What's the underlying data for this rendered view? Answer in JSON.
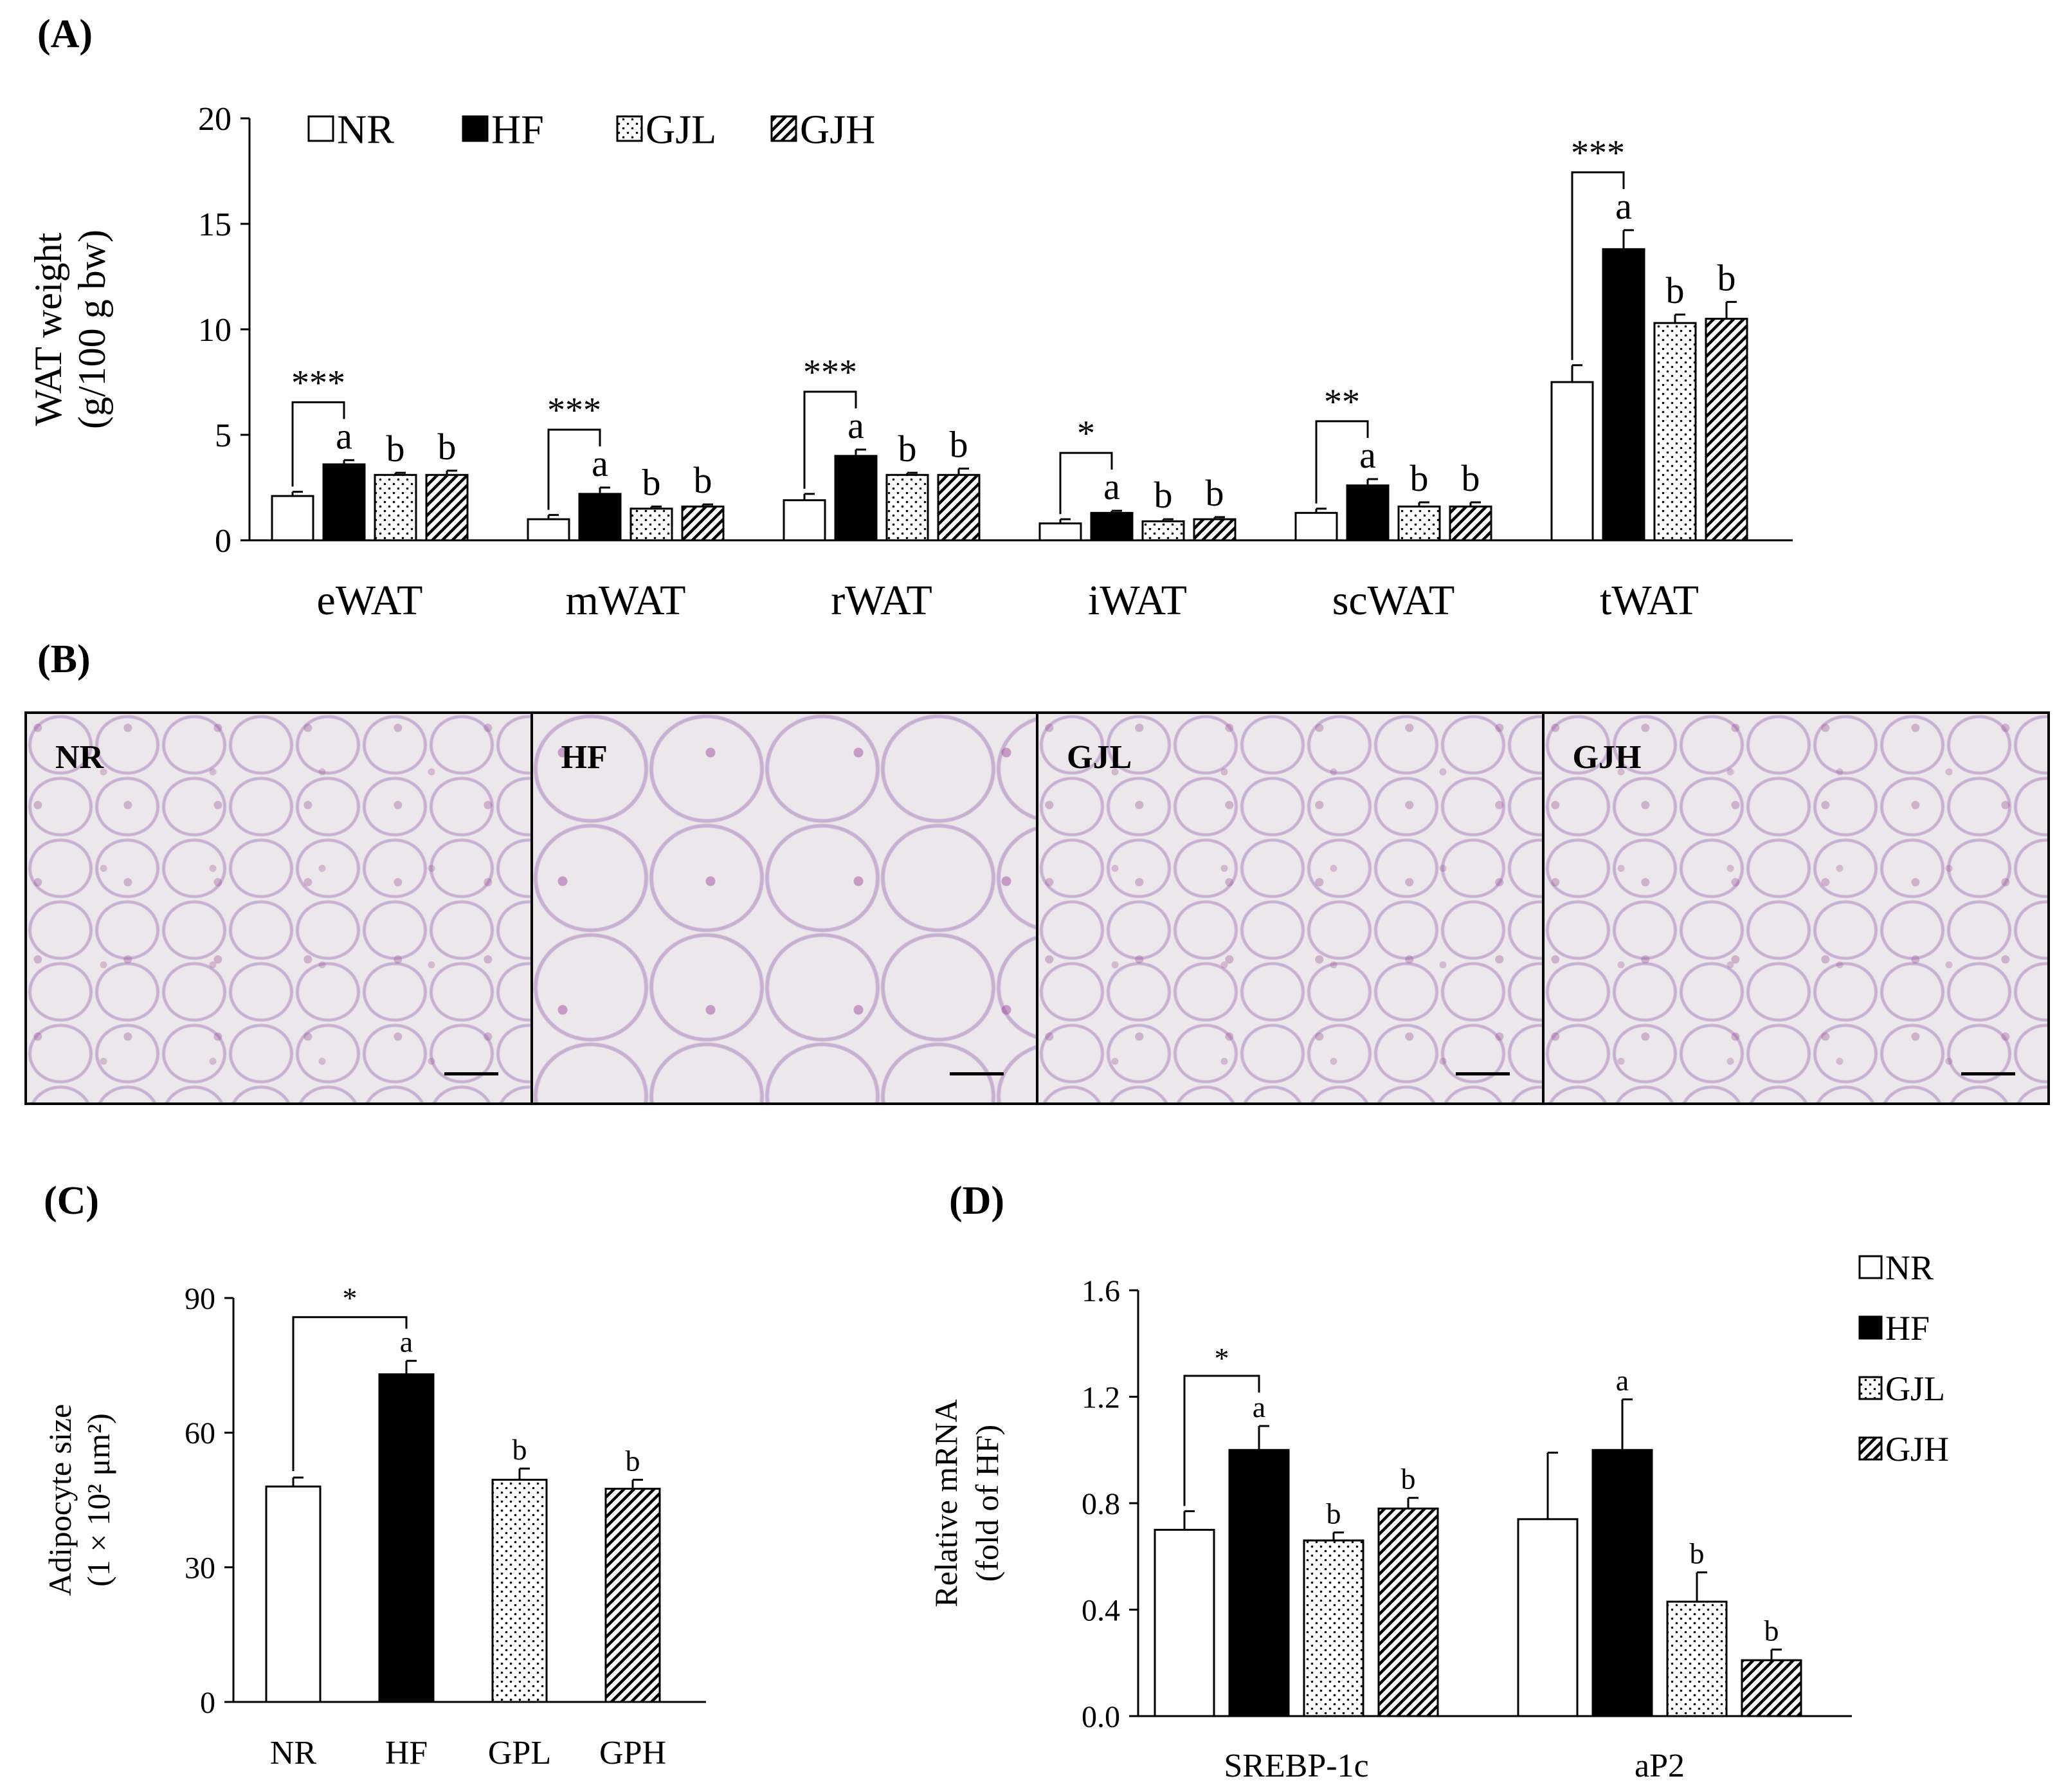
{
  "panels": {
    "A": "(A)",
    "B": "(B)",
    "C": "(C)",
    "D": "(D)"
  },
  "histology": {
    "labels": [
      "NR",
      "HF",
      "GJL",
      "GJH"
    ]
  },
  "chart_data": [
    {
      "id": "A",
      "type": "bar",
      "categories": [
        "eWAT",
        "mWAT",
        "rWAT",
        "iWAT",
        "scWAT",
        "tWAT"
      ],
      "ylabel_lines": [
        "WAT weight",
        "(g/100 g bw)"
      ],
      "ylim": [
        0,
        20
      ],
      "yticks": [
        "0",
        "5",
        "10",
        "15",
        "20"
      ],
      "legend_position": "top-left",
      "series": [
        {
          "name": "NR",
          "pattern": "white",
          "values": [
            2.1,
            1.0,
            1.9,
            0.8,
            1.3,
            7.5
          ],
          "errors": [
            0.2,
            0.2,
            0.3,
            0.2,
            0.2,
            0.8
          ],
          "letters": [
            "",
            "",
            "",
            "",
            "",
            ""
          ]
        },
        {
          "name": "HF",
          "pattern": "black",
          "values": [
            3.6,
            2.2,
            4.0,
            1.3,
            2.6,
            13.8
          ],
          "errors": [
            0.2,
            0.3,
            0.3,
            0.1,
            0.3,
            0.9
          ],
          "letters": [
            "a",
            "a",
            "a",
            "a",
            "a",
            "a"
          ]
        },
        {
          "name": "GJL",
          "pattern": "dots",
          "values": [
            3.1,
            1.5,
            3.1,
            0.9,
            1.6,
            10.3
          ],
          "errors": [
            0.1,
            0.1,
            0.1,
            0.1,
            0.2,
            0.4
          ],
          "letters": [
            "b",
            "b",
            "b",
            "b",
            "b",
            "b"
          ]
        },
        {
          "name": "GJH",
          "pattern": "hatch",
          "values": [
            3.1,
            1.6,
            3.1,
            1.0,
            1.6,
            10.5
          ],
          "errors": [
            0.2,
            0.1,
            0.3,
            0.1,
            0.2,
            0.8
          ],
          "letters": [
            "b",
            "b",
            "b",
            "b",
            "b",
            "b"
          ]
        }
      ],
      "significance": [
        "***",
        "***",
        "***",
        "*",
        "**",
        "***"
      ]
    },
    {
      "id": "C",
      "type": "bar",
      "categories": [
        "NR",
        "HF",
        "GPL",
        "GPH"
      ],
      "ylabel_lines": [
        "Adipocyte size",
        "(1 × 10² μm²)"
      ],
      "ylim": [
        0,
        90
      ],
      "yticks": [
        "0",
        "30",
        "60",
        "90"
      ],
      "series": [
        {
          "name": "",
          "patterns": [
            "white",
            "black",
            "dots",
            "hatch"
          ],
          "values": [
            48,
            73,
            49.5,
            47.5
          ],
          "errors": [
            2,
            3,
            2.5,
            2
          ],
          "letters": [
            "",
            "a",
            "b",
            "b"
          ]
        }
      ],
      "significance": [
        "*"
      ]
    },
    {
      "id": "D",
      "type": "bar",
      "categories": [
        "SREBP-1c",
        "aP2"
      ],
      "ylabel_lines": [
        "Relative mRNA",
        "(fold of HF)"
      ],
      "ylim": [
        0,
        1.6
      ],
      "yticks": [
        "0.0",
        "0.4",
        "0.8",
        "1.2",
        "1.6"
      ],
      "legend_position": "top-right",
      "series": [
        {
          "name": "NR",
          "pattern": "white",
          "values": [
            0.7,
            0.74
          ],
          "errors": [
            0.07,
            0.25
          ],
          "letters": [
            "",
            ""
          ]
        },
        {
          "name": "HF",
          "pattern": "black",
          "values": [
            1.0,
            1.0
          ],
          "errors": [
            0.09,
            0.19
          ],
          "letters": [
            "a",
            "a"
          ]
        },
        {
          "name": "GJL",
          "pattern": "dots",
          "values": [
            0.66,
            0.43
          ],
          "errors": [
            0.03,
            0.11
          ],
          "letters": [
            "b",
            "b"
          ]
        },
        {
          "name": "GJH",
          "pattern": "hatch",
          "values": [
            0.78,
            0.21
          ],
          "errors": [
            0.04,
            0.04
          ],
          "letters": [
            "b",
            "b"
          ]
        }
      ],
      "significance": [
        "*",
        ""
      ]
    }
  ]
}
